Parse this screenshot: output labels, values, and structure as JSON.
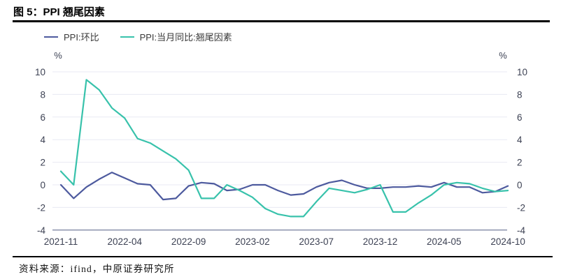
{
  "figure": {
    "title": "图 5：PPI 翘尾因素",
    "source_note": "资料来源：ifind，中原证券研究所"
  },
  "legend": [
    {
      "label": "PPI:环比",
      "color": "#4d5a9e"
    },
    {
      "label": "PPI:当月同比:翘尾因素",
      "color": "#38c2ab"
    }
  ],
  "colors": {
    "ppi_mom_line": "#4d5a9e",
    "carryover_line": "#38c2ab",
    "gridline": "#e8eaf3",
    "axis_line": "#8b93ac",
    "tick_label": "#3d4254",
    "rule": "#000000",
    "background": "#ffffff"
  },
  "chart_data": {
    "type": "line",
    "unit_label": "%",
    "grid": "horizontal",
    "legend_position": "top-left",
    "x": [
      "2021-11",
      "2021-12",
      "2022-01",
      "2022-02",
      "2022-03",
      "2022-04",
      "2022-05",
      "2022-06",
      "2022-07",
      "2022-08",
      "2022-09",
      "2022-10",
      "2022-11",
      "2022-12",
      "2023-01",
      "2023-02",
      "2023-03",
      "2023-04",
      "2023-05",
      "2023-06",
      "2023-07",
      "2023-08",
      "2023-09",
      "2023-10",
      "2023-11",
      "2023-12",
      "2024-01",
      "2024-02",
      "2024-03",
      "2024-04",
      "2024-05",
      "2024-06",
      "2024-07",
      "2024-08",
      "2024-09",
      "2024-10"
    ],
    "x_tick_labels": [
      "2021-11",
      "2022-04",
      "2022-09",
      "2023-02",
      "2023-07",
      "2023-12",
      "2024-05",
      "2024-10"
    ],
    "x_tick_indices": [
      0,
      5,
      10,
      15,
      20,
      25,
      30,
      35
    ],
    "y_ticks": [
      10,
      8,
      6,
      4,
      2,
      0,
      -2,
      -4
    ],
    "ylim": [
      -4,
      10.5
    ],
    "series": [
      {
        "name": "PPI:环比",
        "color": "#4d5a9e",
        "values": [
          0.0,
          -1.2,
          -0.2,
          0.5,
          1.1,
          0.6,
          0.1,
          0.0,
          -1.3,
          -1.2,
          -0.1,
          0.2,
          0.1,
          -0.5,
          -0.4,
          0.0,
          0.0,
          -0.5,
          -0.9,
          -0.8,
          -0.2,
          0.2,
          0.4,
          0.0,
          -0.3,
          -0.3,
          -0.2,
          -0.2,
          -0.1,
          -0.2,
          0.2,
          -0.2,
          -0.2,
          -0.7,
          -0.6,
          -0.1
        ]
      },
      {
        "name": "PPI:当月同比:翘尾因素",
        "color": "#38c2ab",
        "values": [
          1.2,
          0.0,
          9.3,
          8.4,
          6.8,
          5.9,
          4.1,
          3.7,
          3.0,
          2.3,
          1.3,
          -1.2,
          -1.2,
          0.0,
          -0.5,
          -1.1,
          -2.1,
          -2.6,
          -2.8,
          -2.8,
          -1.5,
          -0.3,
          -0.5,
          -0.7,
          -0.4,
          0.0,
          -2.4,
          -2.4,
          -1.6,
          -0.9,
          0.0,
          0.2,
          0.1,
          -0.3,
          -0.6,
          -0.5
        ]
      }
    ]
  }
}
